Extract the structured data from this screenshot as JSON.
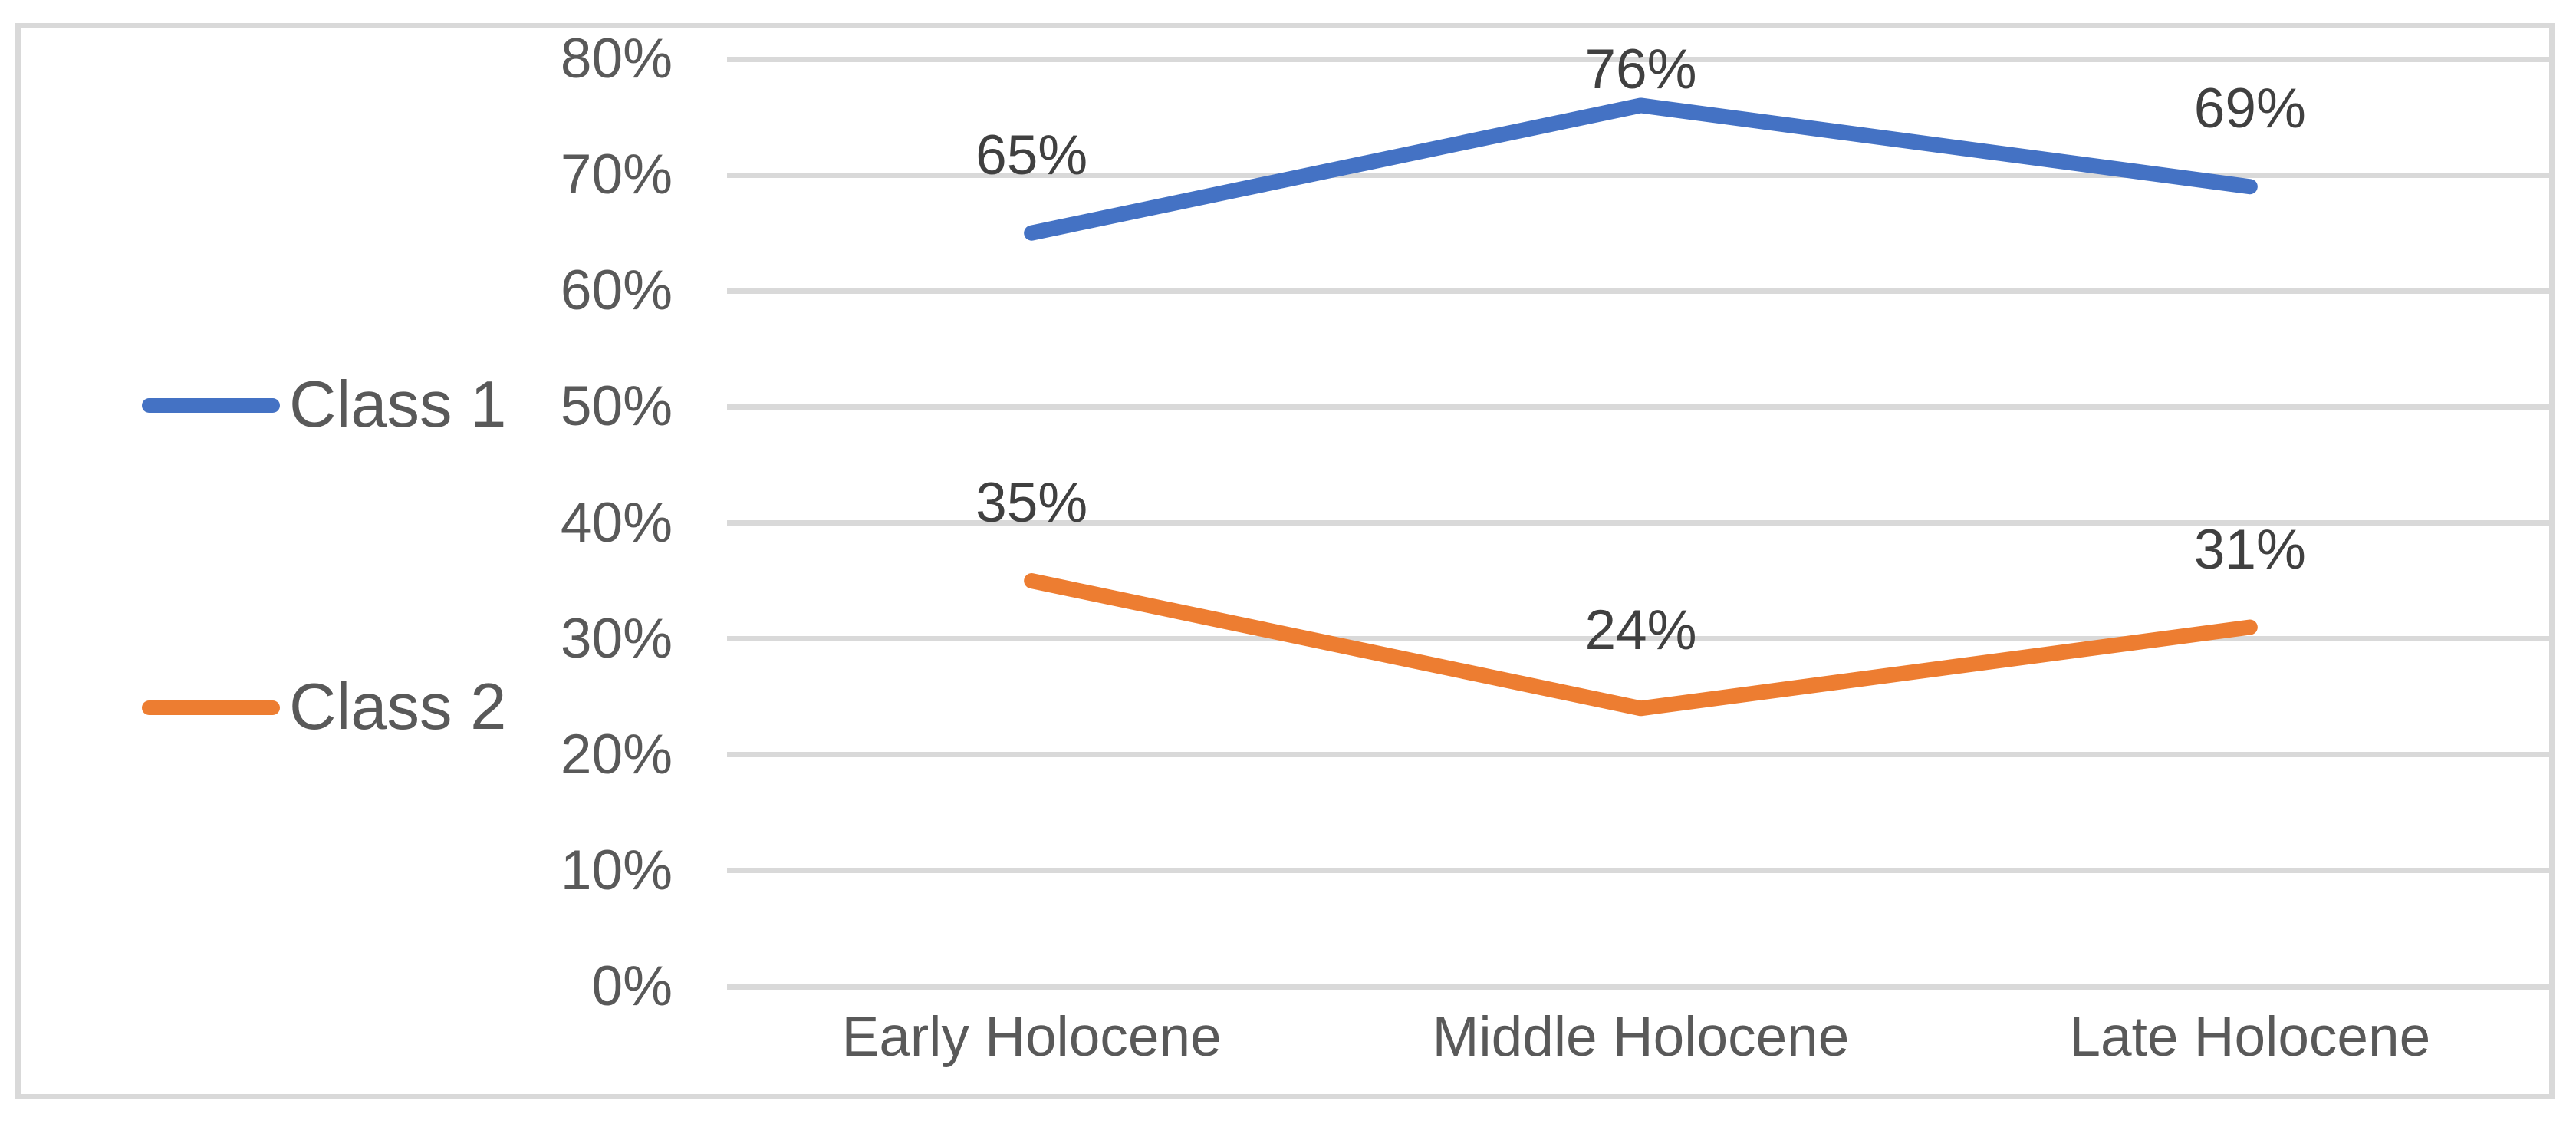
{
  "chart_data": {
    "type": "line",
    "categories": [
      "Early Holocene",
      "Middle Holocene",
      "Late Holocene"
    ],
    "series": [
      {
        "name": "Class 1",
        "color": "#4472C4",
        "values": [
          65,
          76,
          69
        ],
        "data_labels": [
          "65%",
          "76%",
          "69%"
        ]
      },
      {
        "name": "Class 2",
        "color": "#ED7D31",
        "values": [
          35,
          24,
          31
        ],
        "data_labels": [
          "35%",
          "24%",
          "31%"
        ]
      }
    ],
    "title": "",
    "xlabel": "",
    "ylabel": "",
    "ylim": [
      0,
      80
    ],
    "ytick_labels": [
      "0%",
      "10%",
      "20%",
      "30%",
      "40%",
      "50%",
      "60%",
      "70%",
      "80%"
    ],
    "grid": "horizontal",
    "legend_position": "left"
  },
  "colors": {
    "series1": "#4472C4",
    "series2": "#ED7D31",
    "gridline": "#D9D9D9",
    "chart_border": "#D9D9D9",
    "axis_text": "#595959",
    "data_label_text": "#404040",
    "background": "#FFFFFF"
  }
}
